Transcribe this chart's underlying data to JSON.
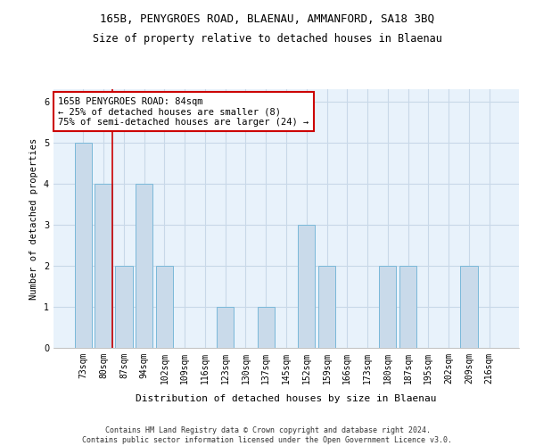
{
  "title1": "165B, PENYGROES ROAD, BLAENAU, AMMANFORD, SA18 3BQ",
  "title2": "Size of property relative to detached houses in Blaenau",
  "xlabel": "Distribution of detached houses by size in Blaenau",
  "ylabel": "Number of detached properties",
  "categories": [
    "73sqm",
    "80sqm",
    "87sqm",
    "94sqm",
    "102sqm",
    "109sqm",
    "116sqm",
    "123sqm",
    "130sqm",
    "137sqm",
    "145sqm",
    "152sqm",
    "159sqm",
    "166sqm",
    "173sqm",
    "180sqm",
    "187sqm",
    "195sqm",
    "202sqm",
    "209sqm",
    "216sqm"
  ],
  "values": [
    5,
    4,
    2,
    4,
    2,
    0,
    0,
    1,
    0,
    1,
    0,
    3,
    2,
    0,
    0,
    2,
    2,
    0,
    0,
    2,
    0
  ],
  "bar_color": "#c9daea",
  "bar_edge_color": "#7ab8d9",
  "grid_color": "#c8d8e8",
  "bg_color": "#e8f2fb",
  "annotation_text": "165B PENYGROES ROAD: 84sqm\n← 25% of detached houses are smaller (8)\n75% of semi-detached houses are larger (24) →",
  "annotation_box_color": "#ffffff",
  "annotation_box_edge": "#cc0000",
  "ylim": [
    0,
    6.3
  ],
  "yticks": [
    0,
    1,
    2,
    3,
    4,
    5,
    6
  ],
  "footnote": "Contains HM Land Registry data © Crown copyright and database right 2024.\nContains public sector information licensed under the Open Government Licence v3.0.",
  "title1_fontsize": 9,
  "title2_fontsize": 8.5,
  "xlabel_fontsize": 8,
  "ylabel_fontsize": 7.5,
  "tick_fontsize": 7,
  "annot_fontsize": 7.5,
  "footnote_fontsize": 6
}
